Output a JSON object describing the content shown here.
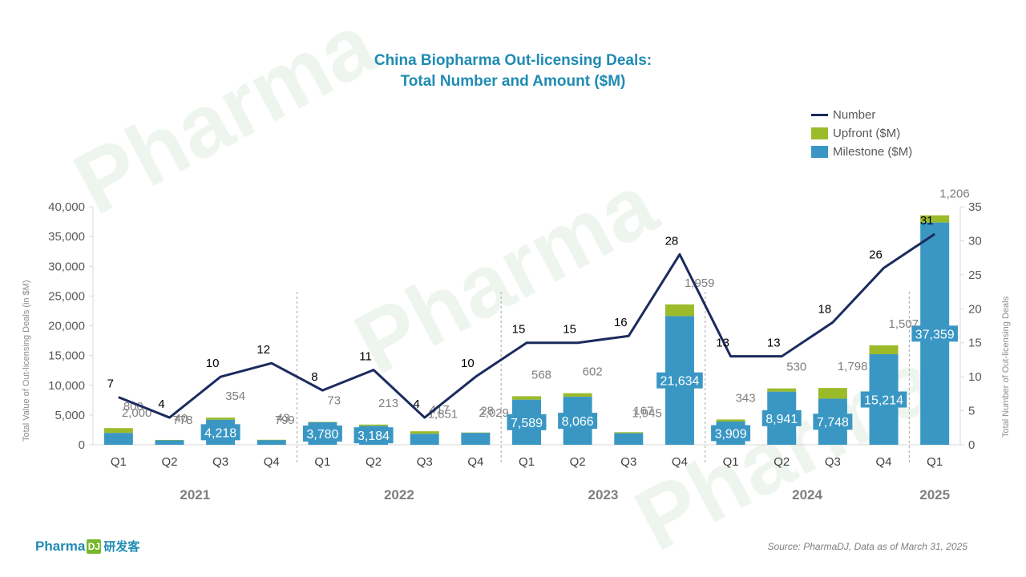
{
  "title_line1": "China Biopharma Out-licensing Deals:",
  "title_line2": "Total Number and Amount ($M)",
  "source": "Source: PharmaDJ, Data as of March 31, 2025",
  "logo": {
    "text": "Pharma",
    "mark": "DJ",
    "cn": "研发客",
    "watermark_text": "Pharma"
  },
  "colors": {
    "milestone": "#3a97c4",
    "upfront": "#9bbb2a",
    "number_line": "#1b2b5e",
    "title": "#1f8bb3",
    "axis_text": "#595959",
    "year_text": "#7f7f7f"
  },
  "legend": [
    {
      "label": "Number",
      "kind": "line",
      "color": "#1b2b5e"
    },
    {
      "label": "Upfront ($M)",
      "kind": "bar",
      "color": "#9bbb2a"
    },
    {
      "label": "Milestone ($M)",
      "kind": "bar",
      "color": "#3a97c4"
    }
  ],
  "chart_data": {
    "type": "bar",
    "stacked": true,
    "title": "China Biopharma Out-licensing Deals: Total Number and Amount ($M)",
    "ylabel": "Total Value of Out-licensing Deals (in $M)",
    "y2label": "Total Number of Out-licensing Deals",
    "ylim": [
      0,
      40000
    ],
    "y2lim": [
      0,
      35
    ],
    "yticks": [
      "40,000",
      "35,000",
      "30,000",
      "25,000",
      "20,000",
      "15,000",
      "10,000",
      "5,000",
      "0"
    ],
    "y2ticks": [
      "35",
      "30",
      "25",
      "20",
      "15",
      "10",
      "5",
      "0"
    ],
    "legend_position": "top-right",
    "categories": [
      "Q1",
      "Q2",
      "Q3",
      "Q4",
      "Q1",
      "Q2",
      "Q3",
      "Q4",
      "Q1",
      "Q2",
      "Q3",
      "Q4",
      "Q1",
      "Q2",
      "Q3",
      "Q4",
      "Q1"
    ],
    "year_groups": [
      {
        "label": "2021",
        "count": 4
      },
      {
        "label": "2022",
        "count": 4
      },
      {
        "label": "2023",
        "count": 4
      },
      {
        "label": "2024",
        "count": 4
      },
      {
        "label": "2025",
        "count": 1
      }
    ],
    "series": [
      {
        "name": "Milestone ($M)",
        "kind": "bar",
        "values": [
          2000,
          778,
          4218,
          799,
          3780,
          3184,
          1851,
          2029,
          7589,
          8066,
          1945,
          21634,
          3909,
          8941,
          7748,
          15214,
          37359
        ],
        "labels": [
          "2,000",
          "778",
          "4,218",
          "799",
          "3,780",
          "3,184",
          "1,851",
          "2,029",
          "7,589",
          "8,066",
          "1,945",
          "21,634",
          "3,909",
          "8,941",
          "7,748",
          "15,214",
          "37,359"
        ]
      },
      {
        "name": "Upfront ($M)",
        "kind": "bar",
        "values": [
          800,
          40,
          354,
          43,
          73,
          213,
          417,
          28,
          568,
          602,
          167,
          1959,
          343,
          530,
          1798,
          1507,
          1206
        ],
        "labels": [
          "800",
          "40",
          "354",
          "43",
          "73",
          "213",
          "417",
          "28",
          "568",
          "602",
          "167",
          "1,959",
          "343",
          "530",
          "1,798",
          "1,507",
          "1,206"
        ]
      },
      {
        "name": "Number",
        "kind": "line",
        "axis": "right",
        "values": [
          7,
          4,
          10,
          12,
          8,
          11,
          4,
          10,
          15,
          15,
          16,
          28,
          13,
          13,
          18,
          26,
          31
        ],
        "labels": [
          "7",
          "4",
          "10",
          "12",
          "8",
          "11",
          "4",
          "10",
          "15",
          "15",
          "16",
          "28",
          "13",
          "13",
          "18",
          "26",
          "31"
        ]
      }
    ]
  }
}
